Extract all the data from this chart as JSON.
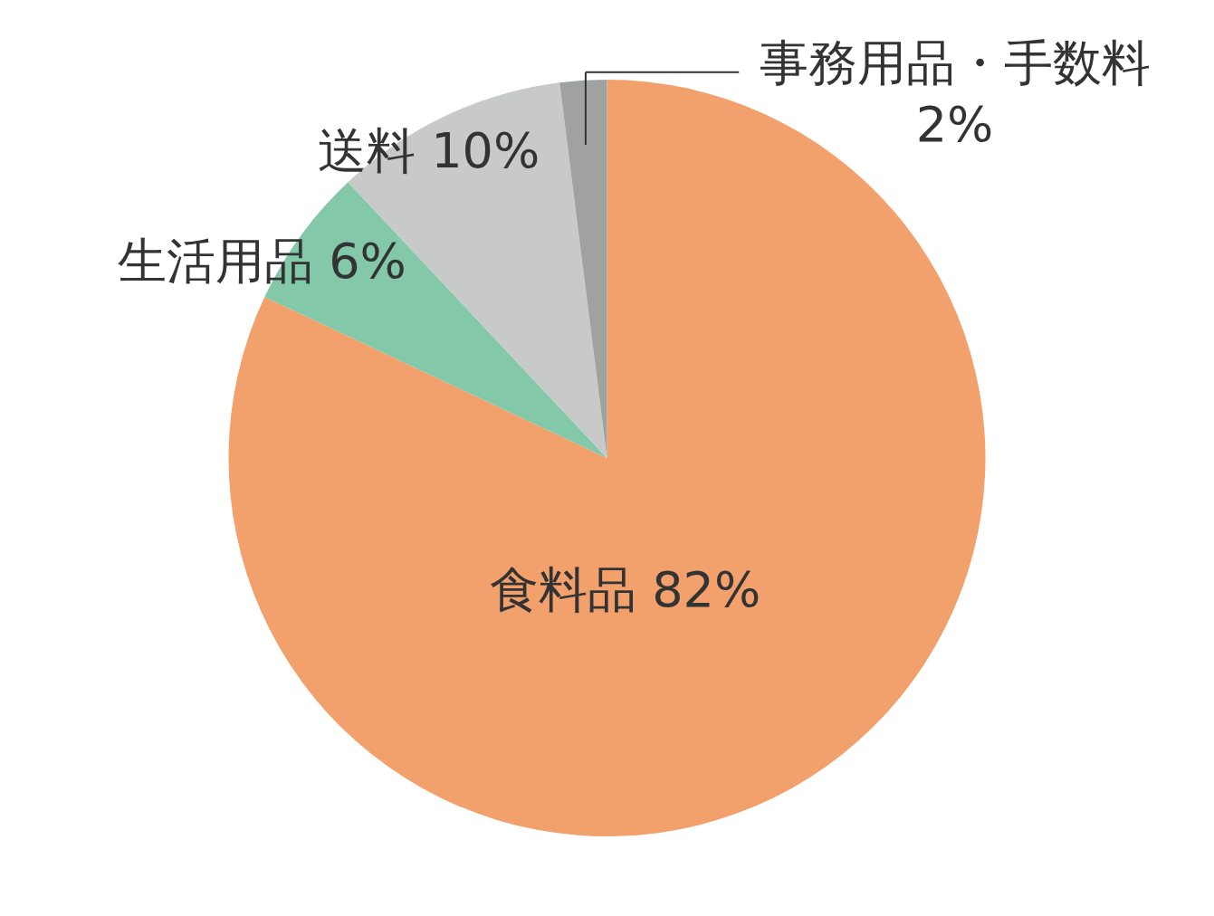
{
  "chart_data": {
    "type": "pie",
    "categories": [
      "食料品",
      "生活用品",
      "送料",
      "事務用品・手数料"
    ],
    "values": [
      82,
      6,
      10,
      2
    ],
    "value_labels": [
      "82%",
      "6%",
      "10%",
      "2%"
    ],
    "colors": [
      "#f2a06c",
      "#82c8a9",
      "#c8cac9",
      "#a0a2a1"
    ]
  }
}
